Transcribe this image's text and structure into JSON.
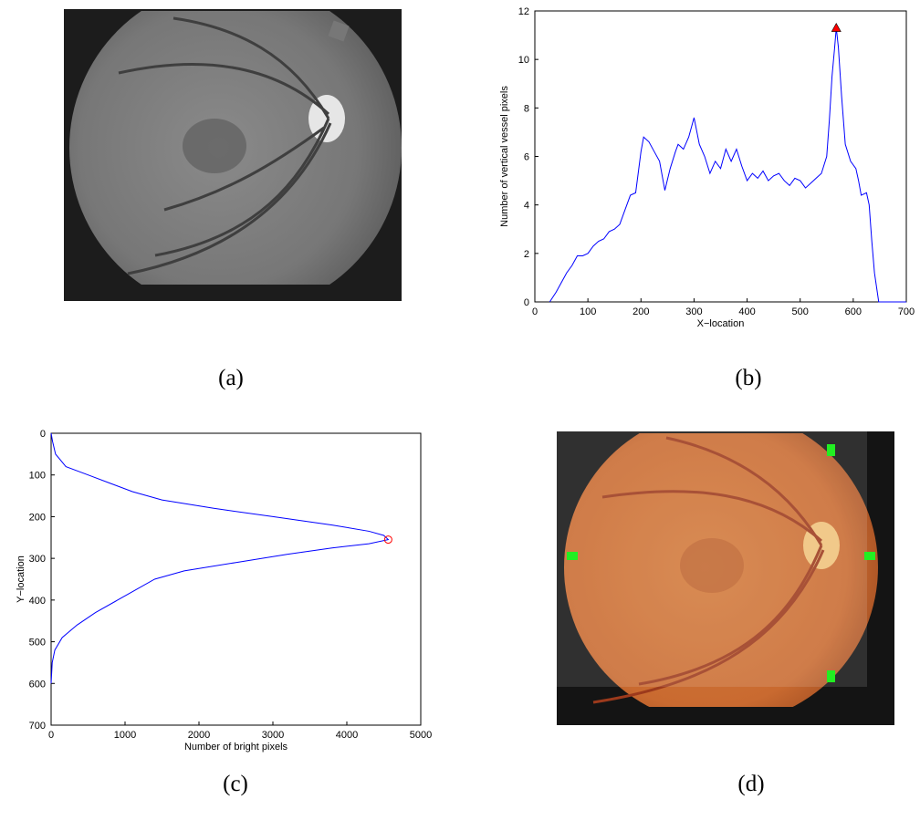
{
  "captions": [
    "(a)",
    "(b)",
    "(c)",
    "(d)"
  ],
  "chart_data": [
    {
      "type": "line",
      "xlabel": "X−location",
      "ylabel": "Number of vertical vessel pixels",
      "x": [
        28,
        40,
        50,
        60,
        70,
        80,
        90,
        100,
        110,
        120,
        130,
        140,
        150,
        160,
        170,
        180,
        190,
        200,
        205,
        215,
        225,
        235,
        245,
        255,
        265,
        270,
        280,
        290,
        300,
        310,
        320,
        330,
        340,
        350,
        360,
        370,
        380,
        390,
        400,
        410,
        420,
        430,
        440,
        450,
        460,
        470,
        480,
        490,
        500,
        510,
        520,
        530,
        540,
        550,
        555,
        560,
        565,
        568,
        572,
        578,
        585,
        595,
        605,
        610,
        615,
        625,
        630,
        635,
        640,
        648,
        700
      ],
      "series": [
        {
          "color": "#0000ff",
          "values": [
            0,
            0.4,
            0.8,
            1.2,
            1.5,
            1.9,
            1.9,
            2.0,
            2.3,
            2.5,
            2.6,
            2.9,
            3.0,
            3.2,
            3.8,
            4.4,
            4.5,
            6.2,
            6.8,
            6.6,
            6.2,
            5.8,
            4.6,
            5.5,
            6.2,
            6.5,
            6.3,
            6.8,
            7.6,
            6.5,
            6.0,
            5.3,
            5.8,
            5.5,
            6.3,
            5.8,
            6.3,
            5.6,
            5.0,
            5.3,
            5.1,
            5.4,
            5.0,
            5.2,
            5.3,
            5.0,
            4.8,
            5.1,
            5.0,
            4.7,
            4.9,
            5.1,
            5.3,
            6.0,
            7.5,
            9.3,
            10.5,
            11.3,
            10.5,
            8.5,
            6.5,
            5.8,
            5.5,
            5.0,
            4.4,
            4.5,
            4.0,
            2.5,
            1.2,
            0,
            0
          ]
        }
      ],
      "marker": {
        "x": 568,
        "y": 11.3,
        "color": "#ff0000"
      },
      "xlim": [
        0,
        700
      ],
      "xticks": [
        0,
        100,
        200,
        300,
        400,
        500,
        600,
        700
      ],
      "ylim": [
        0,
        12
      ],
      "yticks": [
        0,
        2,
        4,
        6,
        8,
        10,
        12
      ]
    },
    {
      "type": "line",
      "xlabel": "Number of bright pixels",
      "ylabel": "Y−location",
      "y_inverted": true,
      "x": [
        0,
        20,
        60,
        200,
        500,
        800,
        1100,
        1500,
        2200,
        3000,
        3800,
        4300,
        4500,
        4560,
        4300,
        3800,
        3200,
        2500,
        1800,
        1400,
        1100,
        900,
        600,
        350,
        150,
        50,
        15,
        0
      ],
      "series": [
        {
          "color": "#0000ff",
          "values": [
            0,
            20,
            50,
            80,
            100,
            120,
            140,
            160,
            180,
            200,
            220,
            235,
            245,
            255,
            265,
            275,
            290,
            310,
            330,
            350,
            380,
            400,
            430,
            460,
            490,
            520,
            550,
            600
          ]
        }
      ],
      "marker": {
        "x": 4560,
        "y": 255,
        "color": "#ff0000"
      },
      "xlim": [
        0,
        5000
      ],
      "xticks": [
        0,
        1000,
        2000,
        3000,
        4000,
        5000
      ],
      "ylim": [
        0,
        700
      ],
      "yticks": [
        0,
        100,
        200,
        300,
        400,
        500,
        600,
        700
      ]
    }
  ]
}
